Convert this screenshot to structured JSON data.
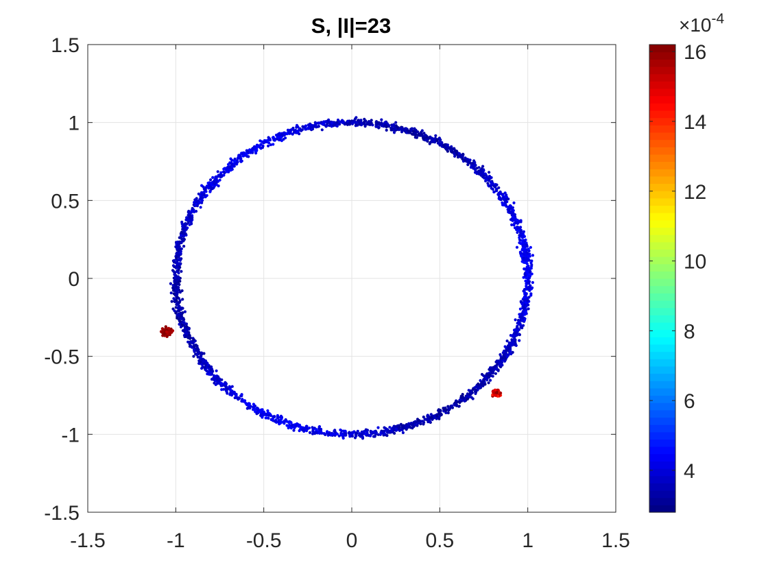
{
  "chart_data": {
    "type": "scatter",
    "title": "S, |I|=23",
    "xlabel": "",
    "ylabel": "",
    "xlim": [
      -1.5,
      1.5
    ],
    "ylim": [
      -1.5,
      1.5
    ],
    "xticks": [
      -1.5,
      -1,
      -0.5,
      0,
      0.5,
      1,
      1.5
    ],
    "yticks": [
      -1.5,
      -1,
      -0.5,
      0,
      0.5,
      1,
      1.5
    ],
    "xtick_labels": [
      "-1.5",
      "-1",
      "-0.5",
      "0",
      "0.5",
      "1",
      "1.5"
    ],
    "ytick_labels": [
      "-1.5",
      "-1",
      "-0.5",
      "0",
      "0.5",
      "1",
      "1.5"
    ],
    "grid": true,
    "colormap": "jet",
    "colorbar": {
      "range": [
        2.8,
        16.2
      ],
      "ticks": [
        4,
        6,
        8,
        10,
        12,
        14,
        16
      ],
      "tick_labels": [
        "4",
        "6",
        "8",
        "10",
        "12",
        "14",
        "16"
      ],
      "exponent_base": "×10",
      "exponent_power": "-4"
    },
    "series": [
      {
        "shape": "ring",
        "center": [
          0,
          0
        ],
        "radius": 1.0,
        "noise": 0.012,
        "value_range": [
          3.0,
          4.6
        ]
      },
      {
        "shape": "cluster",
        "center": [
          -1.05,
          -0.345
        ],
        "spread": 0.025,
        "value_range": [
          15.4,
          16.2
        ]
      },
      {
        "shape": "cluster",
        "center": [
          0.82,
          -0.735
        ],
        "spread": 0.02,
        "value_range": [
          14.0,
          16.2
        ]
      }
    ]
  }
}
